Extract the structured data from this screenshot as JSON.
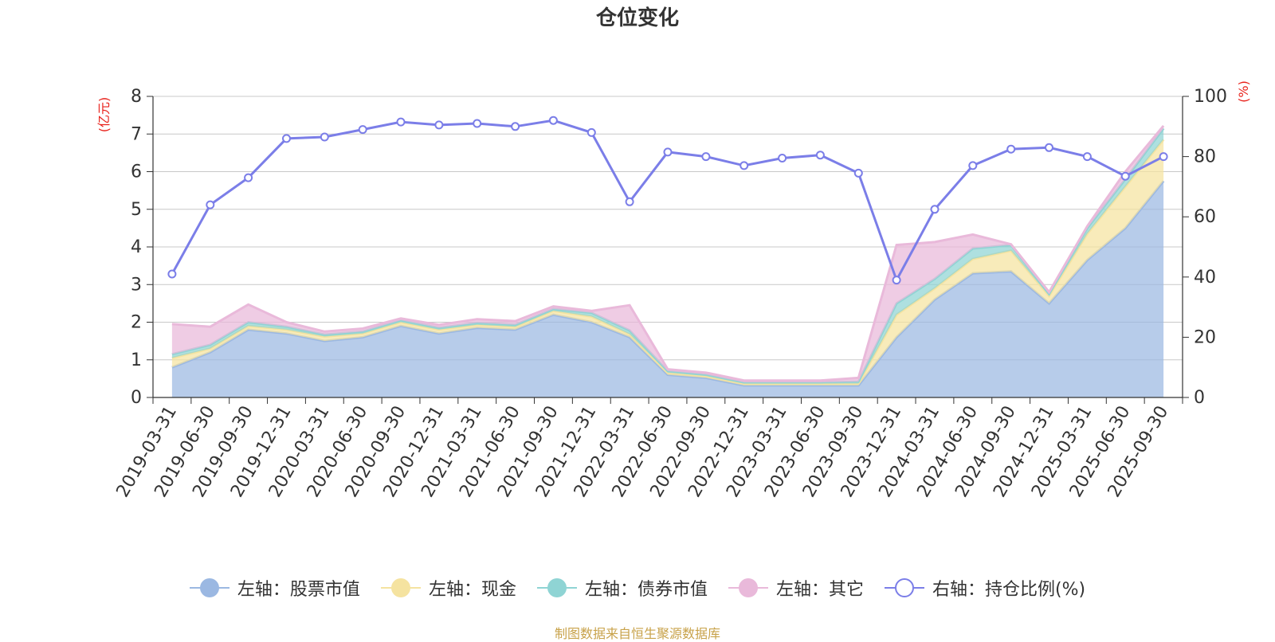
{
  "chart_data": {
    "type": "area",
    "title": "仓位变化",
    "x": [
      "2019-03-31",
      "2019-06-30",
      "2019-09-30",
      "2019-12-31",
      "2020-03-31",
      "2020-06-30",
      "2020-09-30",
      "2020-12-31",
      "2021-03-31",
      "2021-06-30",
      "2021-09-30",
      "2021-12-31",
      "2022-03-31",
      "2022-06-30",
      "2022-09-30",
      "2022-12-31",
      "2023-03-31",
      "2023-06-30",
      "2023-09-30",
      "2023-12-31",
      "2024-03-31",
      "2024-06-30",
      "2024-09-30",
      "2024-12-31",
      "2025-03-31",
      "2025-06-30",
      "2025-09-30"
    ],
    "y_left_label": "(亿元)",
    "y_right_label": "(%)",
    "ylim_left": [
      0,
      8
    ],
    "ylim_right": [
      0,
      100
    ],
    "yticks_left": [
      "0",
      "1",
      "2",
      "3",
      "4",
      "5",
      "6",
      "7",
      "8"
    ],
    "yticks_right": [
      "0",
      "20",
      "40",
      "60",
      "80",
      "100"
    ],
    "stacked": true,
    "series": [
      {
        "name": "左轴：股票市值",
        "axis": "left",
        "type": "area",
        "color": "#9bb8e2",
        "values": [
          0.8,
          1.2,
          1.8,
          1.7,
          1.5,
          1.6,
          1.9,
          1.7,
          1.85,
          1.8,
          2.2,
          2.0,
          1.6,
          0.6,
          0.52,
          0.32,
          0.32,
          0.32,
          0.32,
          1.6,
          2.6,
          3.3,
          3.35,
          2.5,
          3.65,
          4.5,
          5.75
        ]
      },
      {
        "name": "左轴：现金",
        "axis": "left",
        "type": "area",
        "color": "#f5e3a0",
        "values": [
          0.25,
          0.1,
          0.1,
          0.1,
          0.12,
          0.1,
          0.1,
          0.1,
          0.08,
          0.08,
          0.1,
          0.15,
          0.08,
          0.06,
          0.05,
          0.05,
          0.05,
          0.05,
          0.05,
          0.6,
          0.3,
          0.38,
          0.55,
          0.2,
          0.7,
          1.1,
          1.1
        ]
      },
      {
        "name": "左轴：债券市值",
        "axis": "left",
        "type": "area",
        "color": "#8fd4d4",
        "values": [
          0.1,
          0.1,
          0.1,
          0.08,
          0.05,
          0.05,
          0.05,
          0.05,
          0.05,
          0.05,
          0.05,
          0.1,
          0.1,
          0.04,
          0.04,
          0.03,
          0.03,
          0.03,
          0.05,
          0.3,
          0.25,
          0.28,
          0.15,
          0.05,
          0.15,
          0.2,
          0.3
        ]
      },
      {
        "name": "左轴：其它",
        "axis": "left",
        "type": "area",
        "color": "#e9b9da",
        "values": [
          0.8,
          0.48,
          0.47,
          0.12,
          0.08,
          0.08,
          0.05,
          0.08,
          0.1,
          0.1,
          0.07,
          0.05,
          0.67,
          0.05,
          0.05,
          0.05,
          0.05,
          0.05,
          0.1,
          1.55,
          0.98,
          0.37,
          0.02,
          0.05,
          0.05,
          0.2,
          0.07
        ]
      },
      {
        "name": "右轴：持仓比例(%)",
        "axis": "right",
        "type": "line",
        "color": "#7b7ee8",
        "values": [
          41,
          64,
          73,
          86,
          86.5,
          89,
          91.5,
          90.5,
          91,
          90,
          92,
          88,
          65,
          81.5,
          80,
          77,
          79.5,
          80.5,
          74.5,
          39,
          62.5,
          77,
          82.5,
          83,
          80,
          73.5,
          80
        ]
      }
    ],
    "legend_position": "bottom",
    "grid": true
  },
  "source_note": "制图数据来自恒生聚源数据库"
}
